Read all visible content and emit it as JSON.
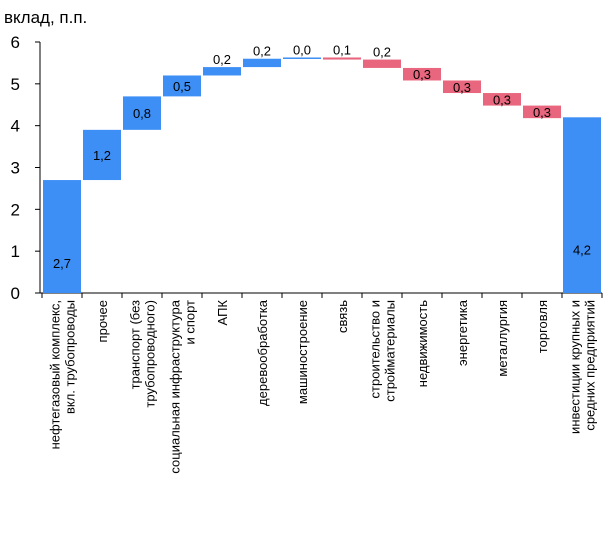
{
  "chart_data": {
    "type": "bar",
    "subtype": "waterfall",
    "ylabel": "вклад, п.п.",
    "ylim": [
      0,
      6
    ],
    "yticks": [
      "0",
      "1",
      "2",
      "3",
      "4",
      "5",
      "6"
    ],
    "grid": false,
    "legend": "none",
    "colors": {
      "positive": "#3d8ff5",
      "negative": "#e8677e",
      "total": "#3d8ff5"
    },
    "categories": [
      "нефтегазовый комплекс, вкл. трубопроводы",
      "прочее",
      "транспорт (без трубопроводного)",
      "социальная инфраструктура и спорт",
      "АПК",
      "деревообработка",
      "машиностроение",
      "связь",
      "строительство и стройматериалы",
      "недвижимость",
      "энергетика",
      "металлургия",
      "торговля",
      "инвестиции крупных и средних предприятий"
    ],
    "values": [
      2.7,
      1.2,
      0.8,
      0.5,
      0.2,
      0.2,
      0.03,
      -0.05,
      -0.2,
      -0.3,
      -0.3,
      -0.3,
      -0.3,
      4.2
    ],
    "kinds": [
      "increase",
      "increase",
      "increase",
      "increase",
      "increase",
      "increase",
      "increase",
      "decrease",
      "decrease",
      "decrease",
      "decrease",
      "decrease",
      "decrease",
      "total"
    ],
    "data_labels": [
      "2,7",
      "1,2",
      "0,8",
      "0,5",
      "0,2",
      "0,2",
      "0,0",
      "0,1",
      "0,2",
      "0,3",
      "0,3",
      "0,3",
      "0,3",
      "4,2"
    ]
  }
}
